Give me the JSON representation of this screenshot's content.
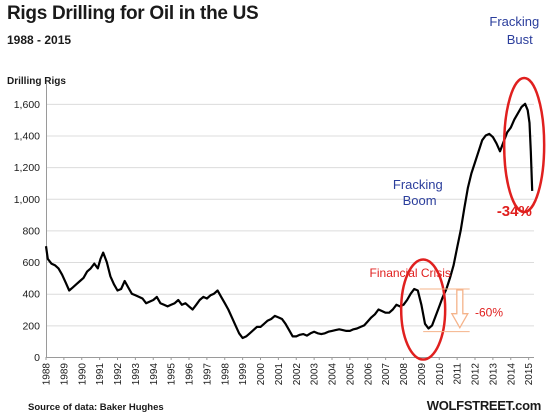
{
  "chart_data": {
    "type": "line",
    "title": "Rigs Drilling for Oil in the US",
    "subtitle": "1988 - 2015",
    "ylabel": "Drilling Rigs",
    "source": "Source of data: Baker Hughes",
    "brand": "WOLFSTREET.com",
    "ylim": [
      0,
      1700
    ],
    "yticks": [
      0,
      200,
      400,
      600,
      800,
      1000,
      1200,
      1400,
      1600
    ],
    "ytick_labels": [
      "0",
      "200",
      "400",
      "600",
      "800",
      "1,000",
      "1,200",
      "1,400",
      "1,600"
    ],
    "xlim": [
      1988,
      2015.3
    ],
    "xticks": [
      "1988",
      "1989",
      "1990",
      "1991",
      "1992",
      "1993",
      "1994",
      "1995",
      "1996",
      "1997",
      "1998",
      "1999",
      "2000",
      "2001",
      "2002",
      "2003",
      "2004",
      "2005",
      "2006",
      "2007",
      "2008",
      "2009",
      "2010",
      "2011",
      "2012",
      "2013",
      "2014",
      "2015"
    ],
    "grid": "horizontal",
    "series": [
      {
        "color": "#000000",
        "x": [
          1988.0,
          1988.1,
          1988.3,
          1988.5,
          1988.7,
          1988.9,
          1989.1,
          1989.3,
          1989.5,
          1989.7,
          1989.9,
          1990.1,
          1990.3,
          1990.5,
          1990.7,
          1990.9,
          1991.05,
          1991.2,
          1991.4,
          1991.6,
          1991.8,
          1992.0,
          1992.2,
          1992.4,
          1992.6,
          1992.8,
          1993.0,
          1993.2,
          1993.4,
          1993.6,
          1993.8,
          1994.0,
          1994.2,
          1994.4,
          1994.6,
          1994.8,
          1995.0,
          1995.2,
          1995.4,
          1995.6,
          1995.8,
          1996.0,
          1996.2,
          1996.4,
          1996.6,
          1996.8,
          1997.0,
          1997.2,
          1997.4,
          1997.6,
          1997.8,
          1998.0,
          1998.2,
          1998.4,
          1998.6,
          1998.8,
          1999.0,
          1999.2,
          1999.4,
          1999.6,
          1999.8,
          2000.0,
          2000.2,
          2000.4,
          2000.6,
          2000.8,
          2001.0,
          2001.2,
          2001.4,
          2001.6,
          2001.8,
          2002.0,
          2002.2,
          2002.4,
          2002.6,
          2002.8,
          2003.0,
          2003.2,
          2003.4,
          2003.6,
          2003.8,
          2004.0,
          2004.2,
          2004.4,
          2004.6,
          2004.8,
          2005.0,
          2005.2,
          2005.4,
          2005.6,
          2005.8,
          2006.0,
          2006.2,
          2006.4,
          2006.6,
          2006.8,
          2007.0,
          2007.2,
          2007.4,
          2007.6,
          2007.8,
          2008.0,
          2008.2,
          2008.4,
          2008.6,
          2008.8,
          2009.0,
          2009.2,
          2009.4,
          2009.6,
          2009.8,
          2010.0,
          2010.2,
          2010.4,
          2010.6,
          2010.8,
          2011.0,
          2011.2,
          2011.4,
          2011.6,
          2011.8,
          2012.0,
          2012.2,
          2012.4,
          2012.6,
          2012.8,
          2013.0,
          2013.2,
          2013.4,
          2013.6,
          2013.8,
          2014.0,
          2014.2,
          2014.4,
          2014.6,
          2014.8,
          2014.95,
          2015.05,
          2015.12,
          2015.2
        ],
        "values": [
          700,
          620,
          590,
          580,
          560,
          520,
          470,
          420,
          440,
          460,
          480,
          500,
          540,
          560,
          590,
          560,
          620,
          660,
          600,
          510,
          460,
          420,
          430,
          480,
          440,
          400,
          390,
          380,
          370,
          340,
          350,
          360,
          380,
          340,
          330,
          320,
          330,
          340,
          360,
          330,
          340,
          320,
          300,
          330,
          360,
          380,
          370,
          390,
          400,
          420,
          380,
          340,
          300,
          250,
          200,
          150,
          120,
          130,
          150,
          170,
          190,
          190,
          210,
          230,
          240,
          260,
          250,
          240,
          210,
          170,
          130,
          130,
          140,
          145,
          135,
          150,
          160,
          150,
          145,
          150,
          160,
          165,
          170,
          175,
          170,
          165,
          165,
          175,
          180,
          190,
          200,
          225,
          250,
          270,
          300,
          290,
          280,
          280,
          300,
          330,
          320,
          330,
          360,
          400,
          430,
          420,
          330,
          210,
          180,
          200,
          260,
          320,
          380,
          430,
          500,
          580,
          690,
          800,
          940,
          1070,
          1160,
          1230,
          1300,
          1370,
          1400,
          1410,
          1390,
          1350,
          1300,
          1360,
          1420,
          1450,
          1500,
          1540,
          1580,
          1600,
          1560,
          1480,
          1300,
          1050
        ]
      }
    ],
    "annotations": {
      "fracking_boom": [
        "Fracking",
        "Boom"
      ],
      "fracking_bust": [
        "Fracking",
        "Bust"
      ],
      "financial_crisis": "Financial Crisis",
      "drop_2009": "-60%",
      "drop_2015": "-34%"
    },
    "colors": {
      "line": "#000000",
      "annotation_blue": "#2b3e9c",
      "annotation_red": "#e0201f",
      "arrow_orange": "#f5b38a",
      "grid": "#dcdcdc"
    }
  }
}
